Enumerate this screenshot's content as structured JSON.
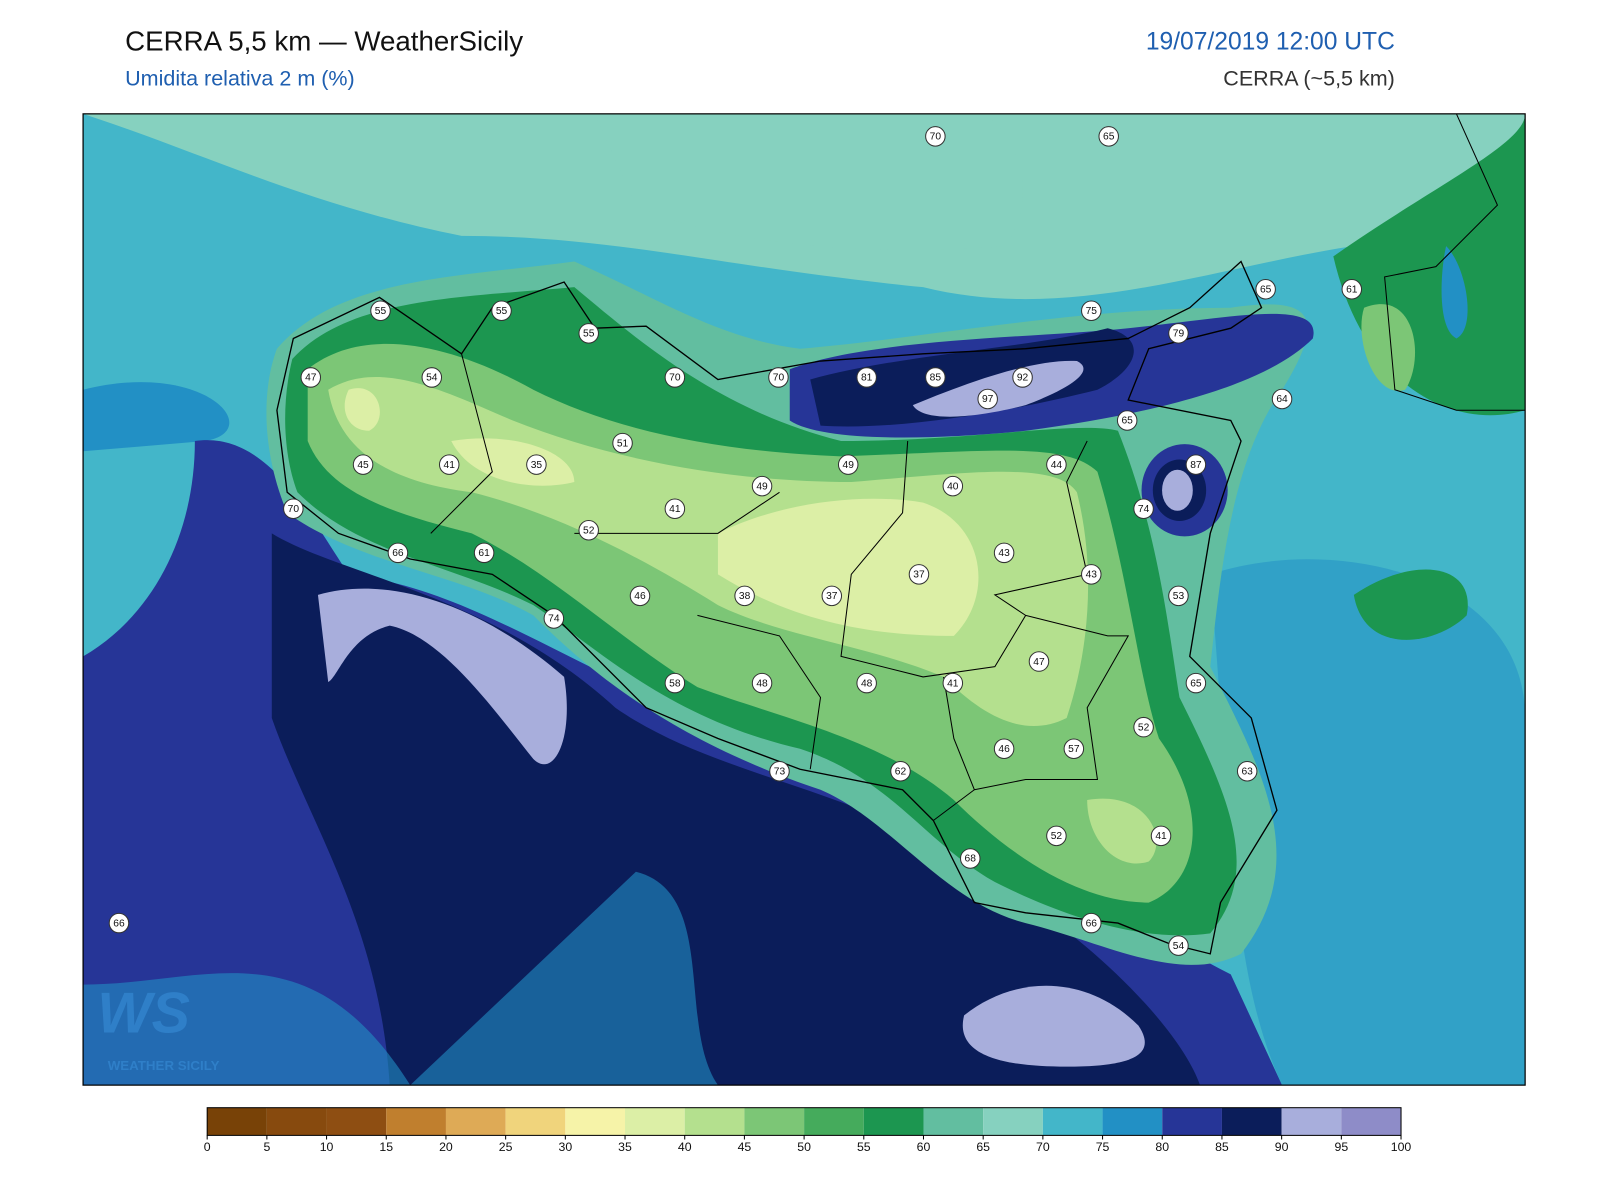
{
  "header": {
    "title": "CERRA 5,5 km — WeatherSicily",
    "subtitle": "Umidita relativa 2 m (%)",
    "datetime": "19/07/2019 12:00 UTC",
    "model": "CERRA (~5,5 km)"
  },
  "logo": {
    "mark": "WS",
    "text": "WEATHER SICILY"
  },
  "stations": [
    70,
    65,
    55,
    55,
    55,
    75,
    79,
    65,
    61,
    47,
    54,
    70,
    70,
    81,
    85,
    92,
    97,
    64,
    65,
    51,
    45,
    41,
    35,
    49,
    44,
    87,
    40,
    49,
    74,
    70,
    41,
    52,
    66,
    61,
    43,
    37,
    43,
    46,
    38,
    37,
    53,
    74,
    47,
    65,
    58,
    48,
    48,
    41,
    52,
    57,
    46,
    73,
    62,
    63,
    52,
    41,
    68,
    66,
    54,
    66
  ],
  "colorbar": {
    "ticks": [
      0,
      5,
      10,
      15,
      20,
      25,
      30,
      35,
      40,
      45,
      50,
      55,
      60,
      65,
      70,
      75,
      80,
      85,
      90,
      95,
      100
    ],
    "colors": [
      "#784207",
      "#874a0e",
      "#8e4e12",
      "#c07f2e",
      "#deaa56",
      "#f0d47c",
      "#f6f3a8",
      "#dcefa6",
      "#b4e08e",
      "#7cc676",
      "#45ab5c",
      "#1c9650",
      "#62bea0",
      "#86d1bf",
      "#43b6c9",
      "#2290c5",
      "#263597",
      "#0b1d5a",
      "#a8aedc",
      "#8e8cc8"
    ]
  }
}
